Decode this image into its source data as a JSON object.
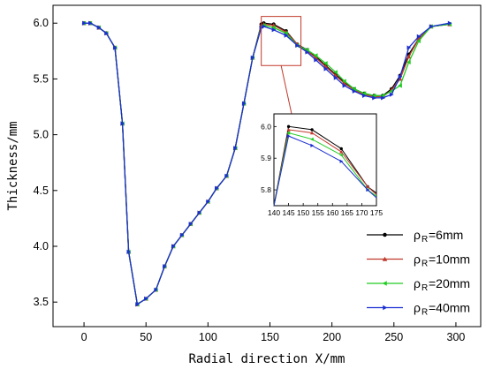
{
  "chart_data": {
    "type": "line",
    "xlabel": "Radial direction X/mm",
    "ylabel": "Thickness/mm",
    "xlim": [
      -25,
      320
    ],
    "ylim": [
      3.28,
      6.16
    ],
    "x_ticks": [
      "0",
      "50",
      "100",
      "150",
      "200",
      "250",
      "300"
    ],
    "y_ticks": [
      "3.5",
      "4.0",
      "4.5",
      "5.0",
      "5.5",
      "6.0"
    ],
    "legend": {
      "position": "bottom-right",
      "symbol": "ρ",
      "subscript": "R"
    },
    "series": [
      {
        "name": "ρ_R=6mm",
        "label_main": "=6mm",
        "color": "#000000",
        "marker": "circle",
        "x": [
          0,
          5,
          12,
          18,
          25,
          31,
          36,
          43,
          50,
          58,
          65,
          72,
          79,
          86,
          93,
          100,
          107,
          115,
          122,
          129,
          136,
          143,
          145,
          153,
          163,
          172,
          180,
          187,
          195,
          203,
          210,
          218,
          226,
          234,
          241,
          248,
          255,
          262,
          270,
          280,
          295
        ],
        "y": [
          6.0,
          6.0,
          5.96,
          5.91,
          5.78,
          5.1,
          3.95,
          3.48,
          3.53,
          3.61,
          3.82,
          4.0,
          4.1,
          4.2,
          4.3,
          4.4,
          4.52,
          4.63,
          4.88,
          5.28,
          5.69,
          5.99,
          6.0,
          5.99,
          5.93,
          5.81,
          5.76,
          5.7,
          5.62,
          5.54,
          5.47,
          5.41,
          5.37,
          5.35,
          5.35,
          5.41,
          5.53,
          5.72,
          5.86,
          5.97,
          5.99
        ]
      },
      {
        "name": "ρ_R=10mm",
        "label_main": "=10mm",
        "color": "#c0392b",
        "marker": "triangle-up",
        "x": [
          0,
          5,
          12,
          18,
          25,
          31,
          36,
          43,
          50,
          58,
          65,
          72,
          79,
          86,
          93,
          100,
          107,
          115,
          122,
          129,
          136,
          143,
          145,
          153,
          163,
          172,
          180,
          187,
          195,
          203,
          210,
          218,
          226,
          234,
          241,
          248,
          255,
          262,
          270,
          280,
          295
        ],
        "y": [
          6.0,
          6.0,
          5.96,
          5.91,
          5.78,
          5.1,
          3.95,
          3.48,
          3.53,
          3.61,
          3.82,
          4.0,
          4.1,
          4.2,
          4.3,
          4.4,
          4.52,
          4.63,
          4.88,
          5.28,
          5.69,
          5.98,
          5.99,
          5.98,
          5.92,
          5.81,
          5.75,
          5.69,
          5.61,
          5.53,
          5.46,
          5.4,
          5.36,
          5.34,
          5.34,
          5.4,
          5.5,
          5.7,
          5.86,
          5.97,
          5.99
        ]
      },
      {
        "name": "ρ_R=20mm",
        "label_main": "=20mm",
        "color": "#22cc22",
        "marker": "triangle-left",
        "x": [
          0,
          5,
          12,
          18,
          25,
          31,
          36,
          43,
          50,
          58,
          65,
          72,
          79,
          86,
          93,
          100,
          107,
          115,
          122,
          129,
          136,
          143,
          145,
          153,
          163,
          172,
          180,
          187,
          195,
          203,
          210,
          218,
          226,
          234,
          241,
          248,
          255,
          262,
          270,
          280,
          295
        ],
        "y": [
          6.0,
          6.0,
          5.96,
          5.91,
          5.78,
          5.1,
          3.95,
          3.48,
          3.53,
          3.61,
          3.82,
          4.0,
          4.1,
          4.2,
          4.3,
          4.4,
          4.52,
          4.63,
          4.88,
          5.28,
          5.69,
          5.97,
          5.98,
          5.96,
          5.91,
          5.8,
          5.76,
          5.71,
          5.64,
          5.56,
          5.48,
          5.41,
          5.37,
          5.35,
          5.35,
          5.39,
          5.44,
          5.65,
          5.84,
          5.97,
          5.99
        ]
      },
      {
        "name": "ρ_R=40mm",
        "label_main": "=40mm",
        "color": "#1a2fd1",
        "marker": "triangle-right",
        "x": [
          0,
          5,
          12,
          18,
          25,
          31,
          36,
          43,
          50,
          58,
          65,
          72,
          79,
          86,
          93,
          100,
          107,
          115,
          122,
          129,
          136,
          143,
          145,
          153,
          163,
          172,
          180,
          187,
          195,
          203,
          210,
          218,
          226,
          234,
          241,
          248,
          255,
          262,
          270,
          280,
          295
        ],
        "y": [
          6.0,
          6.0,
          5.96,
          5.91,
          5.78,
          5.1,
          3.95,
          3.48,
          3.53,
          3.61,
          3.82,
          4.0,
          4.1,
          4.2,
          4.3,
          4.4,
          4.52,
          4.63,
          4.88,
          5.28,
          5.69,
          5.96,
          5.97,
          5.94,
          5.89,
          5.8,
          5.74,
          5.67,
          5.59,
          5.51,
          5.44,
          5.39,
          5.35,
          5.33,
          5.33,
          5.36,
          5.52,
          5.78,
          5.88,
          5.97,
          6.0
        ]
      }
    ],
    "inset": {
      "xlim": [
        140,
        175
      ],
      "ylim": [
        5.75,
        6.04
      ],
      "x_ticks": [
        "140",
        "145",
        "150",
        "155",
        "160",
        "165",
        "170",
        "175"
      ],
      "y_ticks": [
        "5.8",
        "5.9",
        "6.0"
      ],
      "series": [
        {
          "x": [
            140,
            145,
            153,
            163,
            172,
            175
          ],
          "y": [
            5.75,
            6.0,
            5.99,
            5.93,
            5.81,
            5.79
          ]
        },
        {
          "x": [
            140,
            145,
            153,
            163,
            172,
            175
          ],
          "y": [
            5.75,
            5.99,
            5.98,
            5.92,
            5.81,
            5.785
          ]
        },
        {
          "x": [
            140,
            145,
            153,
            163,
            172,
            175
          ],
          "y": [
            5.75,
            5.98,
            5.96,
            5.91,
            5.8,
            5.78
          ]
        },
        {
          "x": [
            140,
            145,
            153,
            163,
            172,
            175
          ],
          "y": [
            5.75,
            5.97,
            5.94,
            5.89,
            5.8,
            5.775
          ]
        }
      ]
    },
    "zoom_box": {
      "x": [
        143,
        175
      ],
      "y": [
        5.62,
        6.06
      ],
      "color": "#c0392b"
    }
  }
}
